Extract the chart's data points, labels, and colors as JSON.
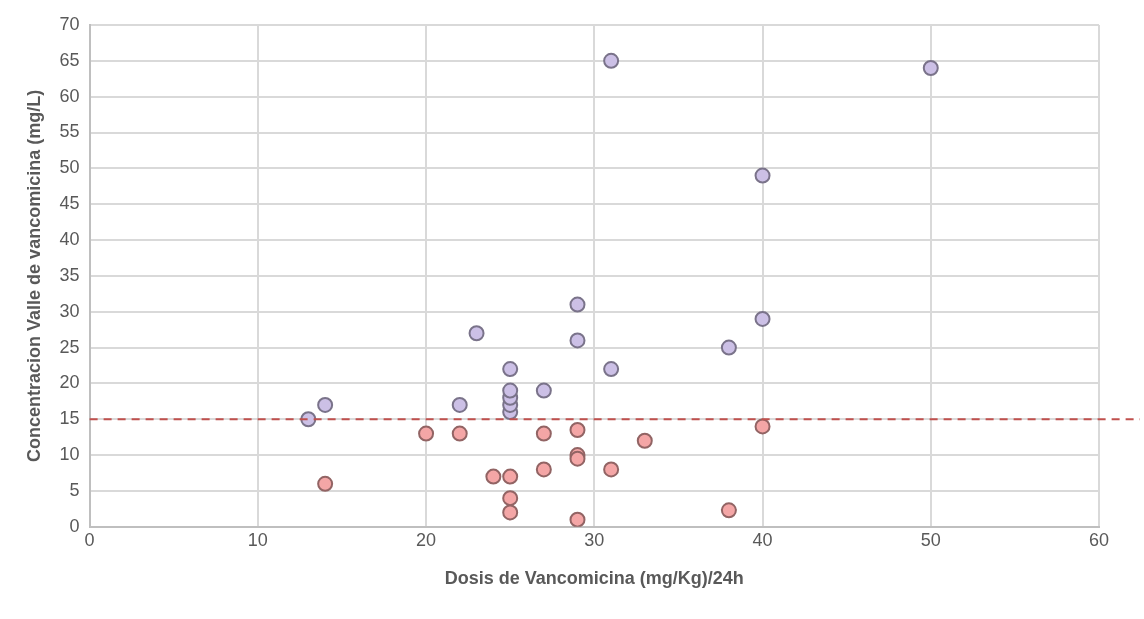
{
  "chart_data": {
    "type": "scatter",
    "xlabel": "Dosis de Vancomicina (mg/Kg)/24h",
    "ylabel": "Concentracion Valle de vancomicina (mg/L)",
    "xlim": [
      0,
      60
    ],
    "xticks": [
      0,
      10,
      20,
      30,
      40,
      50,
      60
    ],
    "ylim": [
      0,
      70
    ],
    "yticks": [
      0,
      5,
      10,
      15,
      20,
      25,
      30,
      35,
      40,
      45,
      50,
      55,
      60,
      65,
      70
    ],
    "grid": true,
    "marker": "circle",
    "series": [
      {
        "color": "#ccc0e6",
        "x": [
          13,
          14,
          22,
          23,
          25,
          25,
          25,
          25,
          25,
          27,
          29,
          29,
          31,
          31,
          38,
          40,
          40,
          50
        ],
        "values": [
          15,
          17,
          17,
          27,
          16,
          17,
          18,
          19,
          22,
          19,
          26,
          31,
          22,
          65,
          25,
          29,
          49,
          64
        ]
      },
      {
        "color": "#f4a6a6",
        "x": [
          14,
          20,
          22,
          24,
          25,
          25,
          25,
          27,
          27,
          29,
          29,
          29,
          29,
          31,
          33,
          38,
          40
        ],
        "values": [
          6,
          13,
          13,
          7,
          7,
          4,
          2,
          13,
          8,
          13.5,
          10,
          9.5,
          1,
          8,
          12,
          2.3,
          14
        ]
      }
    ],
    "ref_lines": [
      {
        "axis": "y",
        "value": 15,
        "color": "#c0504d",
        "line_style": "dashed"
      }
    ]
  }
}
